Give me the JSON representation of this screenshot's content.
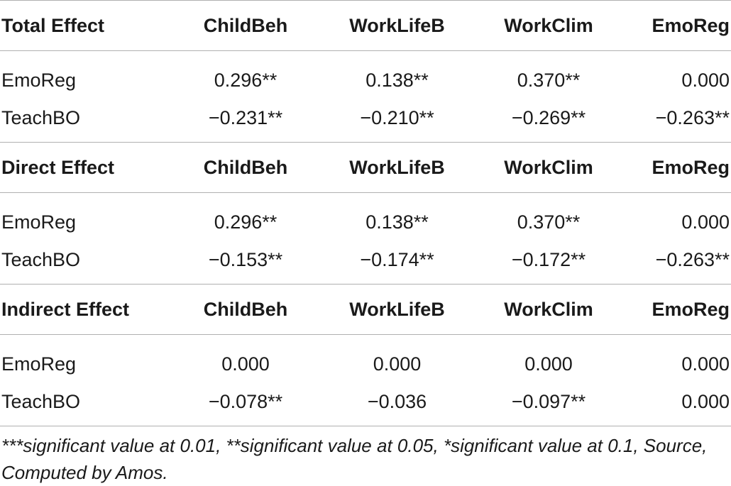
{
  "sections": [
    {
      "header": [
        "Total Effect",
        "ChildBeh",
        "WorkLifeB",
        "WorkClim",
        "EmoReg"
      ],
      "rows": [
        [
          "EmoReg",
          "0.296**",
          "0.138**",
          "0.370**",
          "0.000"
        ],
        [
          "TeachBO",
          "−0.231**",
          "−0.210**",
          "−0.269**",
          "−0.263**"
        ]
      ]
    },
    {
      "header": [
        "Direct Effect",
        "ChildBeh",
        "WorkLifeB",
        "WorkClim",
        "EmoReg"
      ],
      "rows": [
        [
          "EmoReg",
          "0.296**",
          "0.138**",
          "0.370**",
          "0.000"
        ],
        [
          "TeachBO",
          "−0.153**",
          "−0.174**",
          "−0.172**",
          "−0.263**"
        ]
      ]
    },
    {
      "header": [
        "Indirect Effect",
        "ChildBeh",
        "WorkLifeB",
        "WorkClim",
        "EmoReg"
      ],
      "rows": [
        [
          "EmoReg",
          "0.000",
          "0.000",
          "0.000",
          "0.000"
        ],
        [
          "TeachBO",
          "−0.078**",
          "−0.036",
          "−0.097**",
          "0.000"
        ]
      ]
    }
  ],
  "footnote": "***significant value at 0.01, **significant value at 0.05, *significant value at 0.1, Source, Computed by Amos."
}
